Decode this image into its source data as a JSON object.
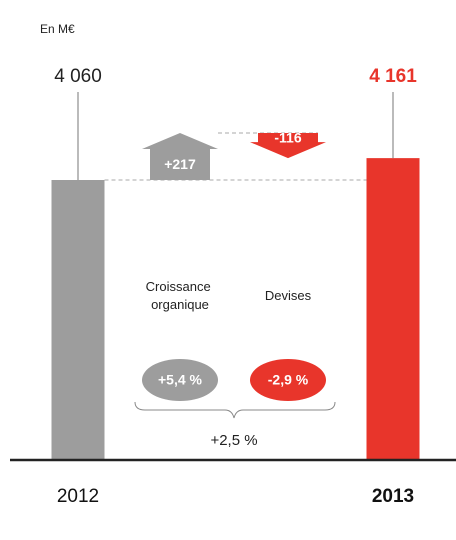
{
  "chart_data": {
    "type": "waterfall",
    "unit": "En M€",
    "categories": [
      "2012",
      "2013"
    ],
    "values": [
      4060,
      4161
    ],
    "value_labels": [
      "4 060",
      "4 161"
    ],
    "colors": [
      "#9d9d9d",
      "#e8352b"
    ],
    "steps": [
      {
        "name": "Croissance organique",
        "value": 217,
        "value_label": "+217",
        "pct": 5.4,
        "pct_label": "+5,4 %",
        "color": "#9d9d9d"
      },
      {
        "name": "Devises",
        "value": -116,
        "value_label": "-116",
        "pct": -2.9,
        "pct_label": "-2,9 %",
        "color": "#e8352b"
      }
    ],
    "total_change": {
      "value": 2.5,
      "label": "+2,5 %"
    }
  }
}
